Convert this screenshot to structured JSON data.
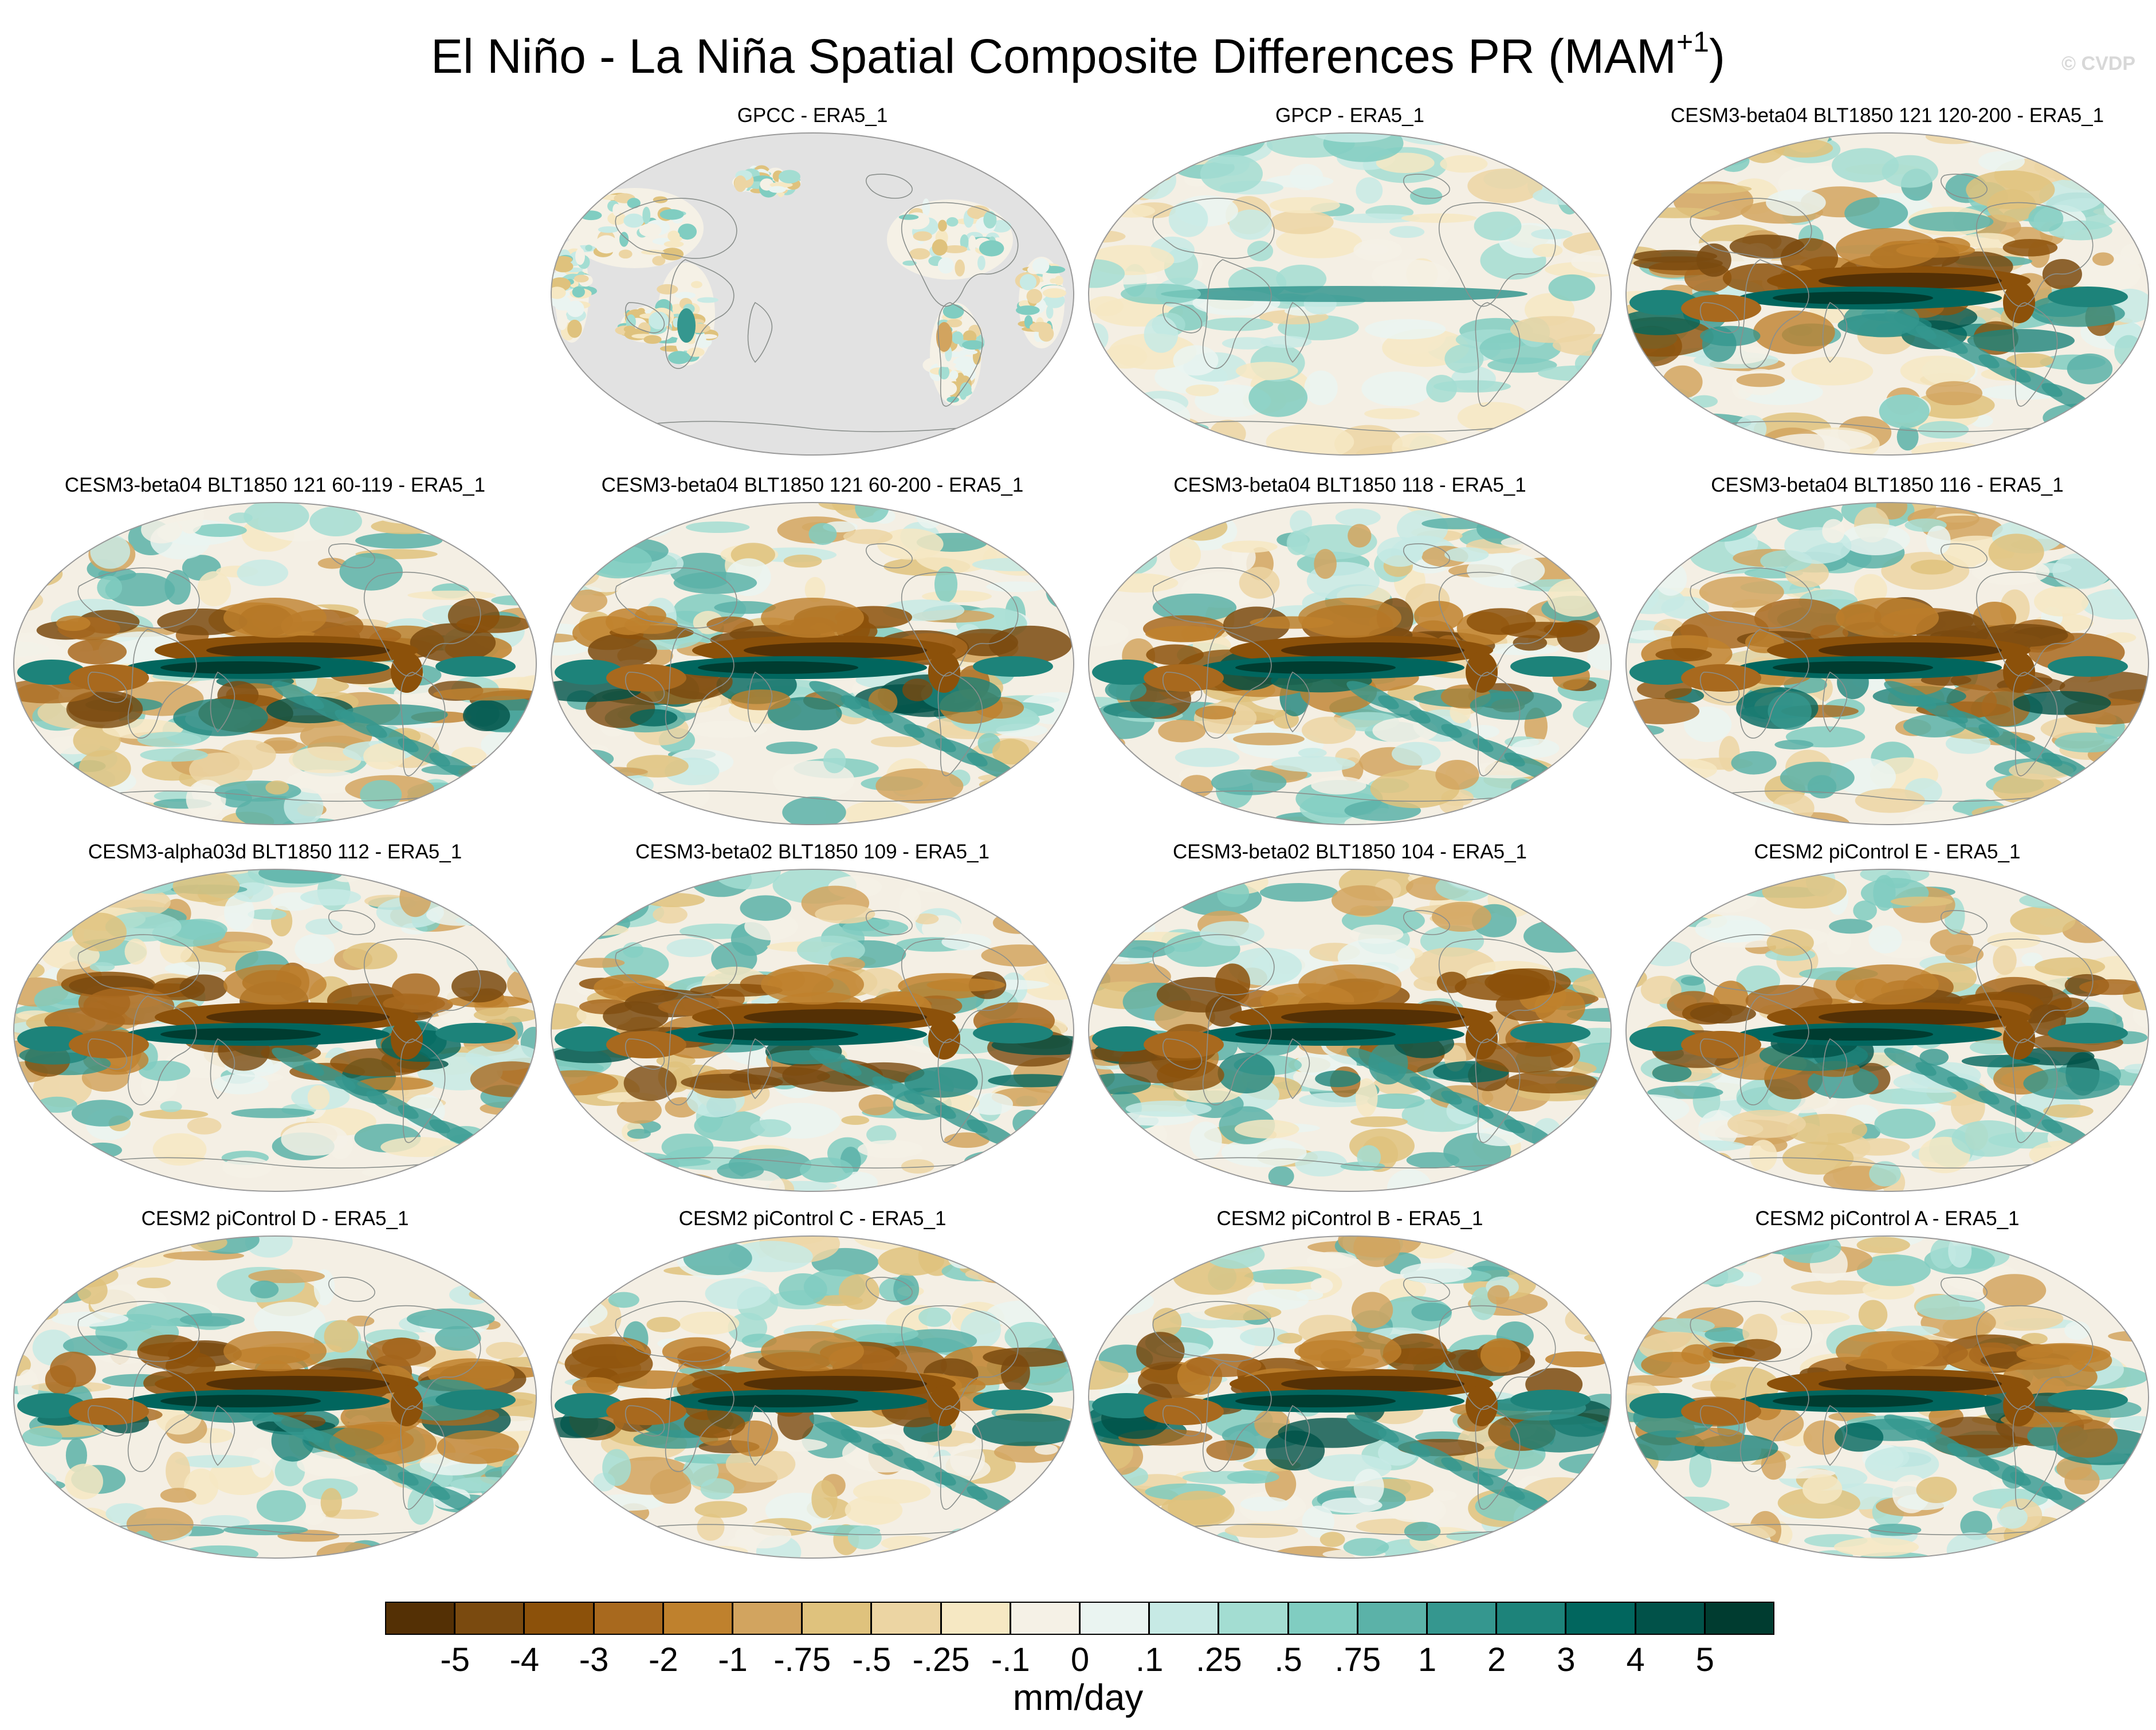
{
  "title": {
    "text": "El Niño - La Niña Spatial Composite Differences PR (MAM",
    "superscript": "+1",
    "closing": ")"
  },
  "watermark": "© CVDP",
  "panels": [
    {
      "title": "GPCC - ERA5_1",
      "type": "land"
    },
    {
      "title": "GPCP - ERA5_1",
      "type": "weak"
    },
    {
      "title": "CESM3-beta04 BLT1850 121 120-200 - ERA5_1",
      "type": "full"
    },
    {
      "title": "CESM3-beta04 BLT1850 121 60-119 - ERA5_1",
      "type": "full"
    },
    {
      "title": "CESM3-beta04 BLT1850 121 60-200 - ERA5_1",
      "type": "full"
    },
    {
      "title": "CESM3-beta04 BLT1850 118 - ERA5_1",
      "type": "full"
    },
    {
      "title": "CESM3-beta04 BLT1850 116 - ERA5_1",
      "type": "full"
    },
    {
      "title": "CESM3-alpha03d BLT1850 112 - ERA5_1",
      "type": "full"
    },
    {
      "title": "CESM3-beta02 BLT1850 109 - ERA5_1",
      "type": "full"
    },
    {
      "title": "CESM3-beta02 BLT1850 104 - ERA5_1",
      "type": "full"
    },
    {
      "title": "CESM2 piControl E - ERA5_1",
      "type": "full"
    },
    {
      "title": "CESM2 piControl D - ERA5_1",
      "type": "full"
    },
    {
      "title": "CESM2 piControl C - ERA5_1",
      "type": "full"
    },
    {
      "title": "CESM2 piControl B - ERA5_1",
      "type": "full"
    },
    {
      "title": "CESM2 piControl A - ERA5_1",
      "type": "full"
    }
  ],
  "colorbar": {
    "colors": [
      "#543005",
      "#7a4a0f",
      "#8c510a",
      "#a8691e",
      "#bf812d",
      "#d2a45f",
      "#dfc27d",
      "#ecd5a3",
      "#f6e8c3",
      "#f5f1e6",
      "#eaf4f1",
      "#c7eae5",
      "#a3ddd2",
      "#80cdc1",
      "#5bb2a8",
      "#35978f",
      "#1d837a",
      "#01665e",
      "#015249",
      "#003c30"
    ],
    "labels": [
      "-5",
      "-4",
      "-3",
      "-2",
      "-1",
      "-.75",
      "-.5",
      "-.25",
      "-.1",
      "0",
      ".1",
      ".25",
      ".5",
      ".75",
      "1",
      "2",
      "3",
      "4",
      "5"
    ],
    "units": "mm/day"
  }
}
